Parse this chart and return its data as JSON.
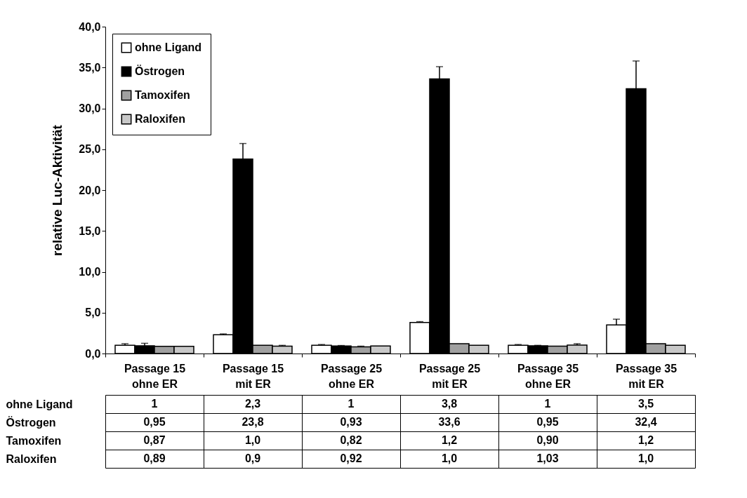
{
  "chart_data": {
    "type": "bar",
    "ylabel": "relative Luc-Aktivität",
    "categories": [
      "Passage 15 ohne ER",
      "Passage 15 mit ER",
      "Passage 25 ohne ER",
      "Passage 25 mit ER",
      "Passage 35 ohne ER",
      "Passage 35 mit ER"
    ],
    "series": [
      {
        "name": "ohne Ligand",
        "color": "#ffffff",
        "values": [
          1,
          2.3,
          1,
          3.8,
          1,
          3.5
        ],
        "errors": [
          [
            1,
            1.2
          ],
          [
            2.3,
            2.4
          ],
          [
            1,
            1.1
          ],
          [
            3.8,
            3.9
          ],
          [
            1,
            1.1
          ],
          [
            3.5,
            4.2
          ]
        ],
        "value_labels": [
          "1",
          "2,3",
          "1",
          "3,8",
          "1",
          "3,5"
        ]
      },
      {
        "name": "Östrogen",
        "color": "#000000",
        "values": [
          0.95,
          23.8,
          0.93,
          33.6,
          0.95,
          32.4
        ],
        "errors": [
          [
            0.95,
            1.25
          ],
          [
            23.8,
            25.7
          ],
          [
            0.93,
            0.98
          ],
          [
            33.6,
            35.1
          ],
          [
            0.95,
            1.0
          ],
          [
            32.4,
            35.8
          ]
        ],
        "value_labels": [
          "0,95",
          "23,8",
          "0,93",
          "33,6",
          "0,95",
          "32,4"
        ]
      },
      {
        "name": "Tamoxifen",
        "color": "#a0a0a0",
        "values": [
          0.87,
          1.0,
          0.82,
          1.2,
          0.9,
          1.2
        ],
        "errors": [
          null,
          null,
          [
            0.82,
            0.9
          ],
          null,
          null,
          null
        ],
        "value_labels": [
          "0,87",
          "1,0",
          "0,82",
          "1,2",
          "0,90",
          "1,2"
        ]
      },
      {
        "name": "Raloxifen",
        "color": "#c8c8c8",
        "values": [
          0.89,
          0.9,
          0.92,
          1.0,
          1.03,
          1.0
        ],
        "errors": [
          null,
          [
            0.9,
            1.0
          ],
          null,
          null,
          [
            1.03,
            1.2
          ],
          null
        ],
        "value_labels": [
          "0,89",
          "0,9",
          "0,92",
          "1,0",
          "1,03",
          "1,0"
        ]
      }
    ],
    "ylim": [
      0,
      40
    ],
    "yticks": [
      {
        "value": 0,
        "label": "0,0"
      },
      {
        "value": 5,
        "label": "5,0"
      },
      {
        "value": 10,
        "label": "10,0"
      },
      {
        "value": 15,
        "label": "15,0"
      },
      {
        "value": 20,
        "label": "20,0"
      },
      {
        "value": 25,
        "label": "25,0"
      },
      {
        "value": 30,
        "label": "30,0"
      },
      {
        "value": 35,
        "label": "35,0"
      },
      {
        "value": 40,
        "label": "40,0"
      }
    ],
    "grid": false,
    "legend": "top left"
  }
}
